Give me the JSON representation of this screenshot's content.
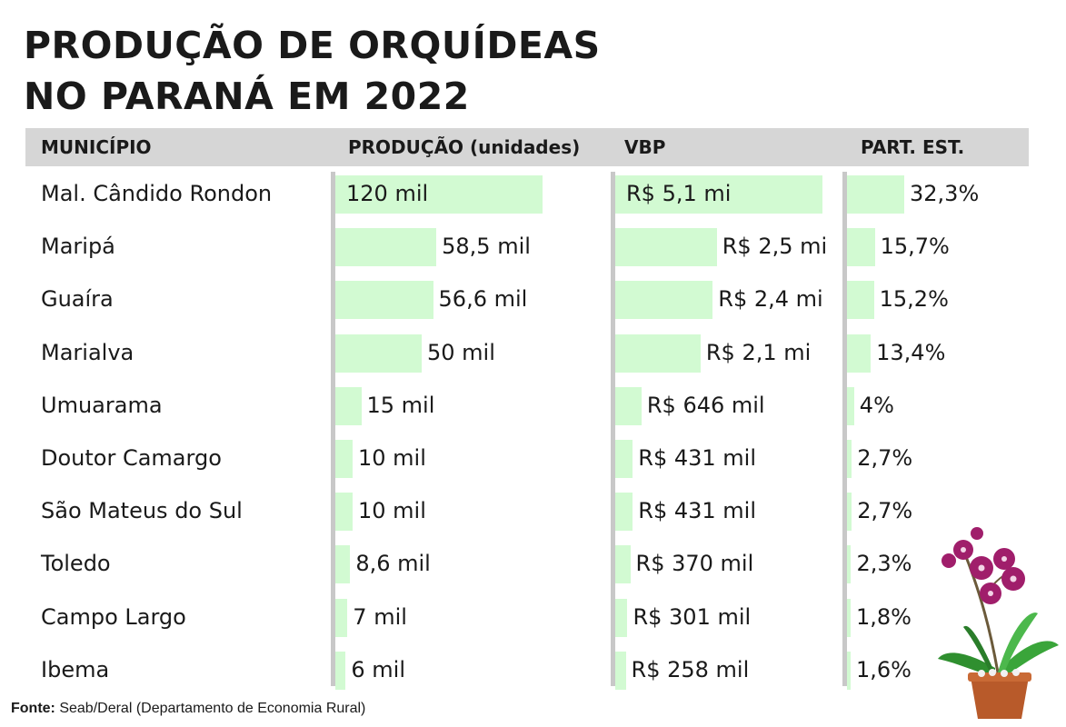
{
  "title_line1": "PRODUÇÃO DE ORQUÍDEAS",
  "title_line2": "NO PARANÁ EM 2022",
  "headers": {
    "municipio": "MUNICÍPIO",
    "producao": "PRODUÇÃO (unidades)",
    "vbp": "VBP",
    "part": "PART. EST."
  },
  "source_label": "Fonte:",
  "source_text": "Seab/Deral (Departamento de Economia Rural)",
  "colors": {
    "bar": "#d2fad2",
    "header": "#d6d6d6",
    "axis": "#c8c8c8"
  },
  "chart_data": {
    "type": "table",
    "rows": [
      {
        "municipio": "Mal. Cândido Rondon",
        "producao": 120000,
        "producao_label": "120 mil",
        "vbp": 5100000,
        "vbp_label": "R$ 5,1 mi",
        "part": 32.3,
        "part_label": "32,3%"
      },
      {
        "municipio": "Maripá",
        "producao": 58500,
        "producao_label": "58,5 mil",
        "vbp": 2500000,
        "vbp_label": "R$ 2,5 mi",
        "part": 15.7,
        "part_label": "15,7%"
      },
      {
        "municipio": "Guaíra",
        "producao": 56600,
        "producao_label": "56,6 mil",
        "vbp": 2400000,
        "vbp_label": "R$ 2,4 mi",
        "part": 15.2,
        "part_label": "15,2%"
      },
      {
        "municipio": "Marialva",
        "producao": 50000,
        "producao_label": "50 mil",
        "vbp": 2100000,
        "vbp_label": "R$ 2,1 mi",
        "part": 13.4,
        "part_label": "13,4%"
      },
      {
        "municipio": "Umuarama",
        "producao": 15000,
        "producao_label": "15 mil",
        "vbp": 646000,
        "vbp_label": "R$ 646 mil",
        "part": 4,
        "part_label": "4%"
      },
      {
        "municipio": "Doutor Camargo",
        "producao": 10000,
        "producao_label": "10 mil",
        "vbp": 431000,
        "vbp_label": "R$ 431 mil",
        "part": 2.7,
        "part_label": "2,7%"
      },
      {
        "municipio": "São Mateus do Sul",
        "producao": 10000,
        "producao_label": "10 mil",
        "vbp": 431000,
        "vbp_label": "R$ 431 mil",
        "part": 2.7,
        "part_label": "2,7%"
      },
      {
        "municipio": "Toledo",
        "producao": 8600,
        "producao_label": "8,6 mil",
        "vbp": 370000,
        "vbp_label": "R$ 370 mil",
        "part": 2.3,
        "part_label": "2,3%"
      },
      {
        "municipio": "Campo Largo",
        "producao": 7000,
        "producao_label": "7 mil",
        "vbp": 301000,
        "vbp_label": "R$ 301 mil",
        "part": 1.8,
        "part_label": "1,8%"
      },
      {
        "municipio": "Ibema",
        "producao": 6000,
        "producao_label": "6 mil",
        "vbp": 258000,
        "vbp_label": "R$ 258 mil",
        "part": 1.6,
        "part_label": "1,6%"
      }
    ]
  }
}
